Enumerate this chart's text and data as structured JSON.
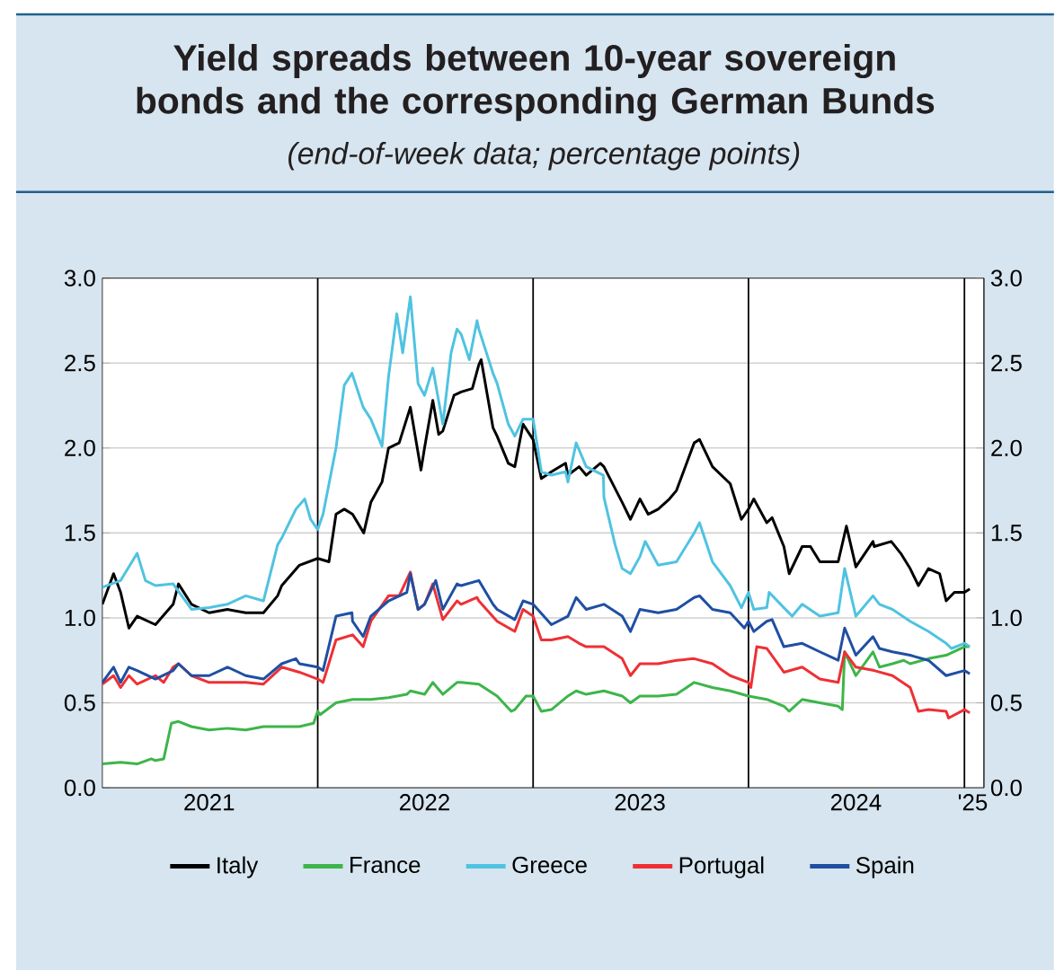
{
  "chart_data": {
    "type": "line",
    "title": "Yield spreads between 10-year sovereign bonds and the corresponding German Bunds",
    "subtitle": "(end-of-week data; percentage points)",
    "xlim": [
      "2021-01-01",
      "2025-02-03"
    ],
    "xticks": [
      {
        "value": "2021-07-01",
        "label": "2021"
      },
      {
        "value": "2022-07-01",
        "label": "2022"
      },
      {
        "value": "2023-07-01",
        "label": "2023"
      },
      {
        "value": "2024-07-01",
        "label": "2024"
      },
      {
        "value": "2025-01-15",
        "label": "'25"
      }
    ],
    "ylim": [
      0,
      3
    ],
    "yticks": [
      {
        "value": 0,
        "label": "0.0"
      },
      0.5,
      {
        "value": 1,
        "label": "1.0"
      },
      1.5,
      {
        "value": 2,
        "label": "2.0"
      },
      2.5,
      {
        "value": 3,
        "label": "3.0"
      }
    ],
    "y2lim": [
      0,
      3
    ],
    "y2ticks": [
      {
        "value": 0,
        "label": "0.0"
      },
      0.5,
      {
        "value": 1,
        "label": "1.0"
      },
      1.5,
      {
        "value": 2,
        "label": "2.0"
      },
      2.5,
      {
        "value": 3,
        "label": "3.0"
      }
    ],
    "grid": "y",
    "legend": "bottom",
    "ref_lines": [
      {
        "axis": "x",
        "value": "2022-01-01",
        "color": "#000000"
      },
      {
        "axis": "x",
        "value": "2023-01-01",
        "color": "#000000"
      },
      {
        "axis": "x",
        "value": "2024-01-01",
        "color": "#000000"
      },
      {
        "axis": "x",
        "value": "2025-01-01",
        "color": "#000000"
      }
    ],
    "series": [
      {
        "name": "Italy",
        "color": "#000000",
        "x": [
          "2021-01-01",
          "2021-01-20",
          "2021-02-01",
          "2021-02-15",
          "2021-03-01",
          "2021-04-01",
          "2021-05-01",
          "2021-05-10",
          "2021-06-01",
          "2021-07-01",
          "2021-08-01",
          "2021-09-01",
          "2021-10-01",
          "2021-10-25",
          "2021-11-01",
          "2021-12-01",
          "2022-01-01",
          "2022-01-20",
          "2022-02-01",
          "2022-02-15",
          "2022-03-01",
          "2022-03-20",
          "2022-04-01",
          "2022-04-20",
          "2022-05-01",
          "2022-05-19",
          "2022-06-07",
          "2022-06-25",
          "2022-07-01",
          "2022-07-15",
          "2022-07-25",
          "2022-08-01",
          "2022-08-20",
          "2022-09-01",
          "2022-09-20",
          "2022-10-01",
          "2022-10-05",
          "2022-10-25",
          "2022-11-01",
          "2022-11-20",
          "2022-12-01",
          "2022-12-15",
          "2023-01-01",
          "2023-01-15",
          "2023-02-01",
          "2023-02-25",
          "2023-03-01",
          "2023-03-20",
          "2023-04-01",
          "2023-04-25",
          "2023-05-01",
          "2023-06-01",
          "2023-06-15",
          "2023-07-01",
          "2023-07-15",
          "2023-08-01",
          "2023-08-20",
          "2023-09-01",
          "2023-10-01",
          "2023-10-10",
          "2023-11-01",
          "2023-12-01",
          "2023-12-20",
          "2024-01-01",
          "2024-01-10",
          "2024-02-01",
          "2024-02-10",
          "2024-03-01",
          "2024-03-10",
          "2024-04-01",
          "2024-04-15",
          "2024-05-01",
          "2024-06-01",
          "2024-06-15",
          "2024-07-01",
          "2024-07-30",
          "2024-08-01",
          "2024-08-30",
          "2024-09-15",
          "2024-10-01",
          "2024-10-15",
          "2024-11-01",
          "2024-11-20",
          "2024-12-01",
          "2024-12-15",
          "2025-01-01",
          "2025-01-10"
        ],
        "values": [
          1.08,
          1.26,
          1.15,
          0.94,
          1.01,
          0.96,
          1.08,
          1.2,
          1.08,
          1.03,
          1.05,
          1.03,
          1.03,
          1.13,
          1.19,
          1.31,
          1.35,
          1.33,
          1.61,
          1.64,
          1.61,
          1.5,
          1.68,
          1.8,
          2.0,
          2.03,
          2.24,
          1.87,
          2.0,
          2.28,
          2.08,
          2.1,
          2.31,
          2.33,
          2.35,
          2.49,
          2.52,
          2.12,
          2.07,
          1.91,
          1.89,
          2.14,
          2.05,
          1.82,
          1.86,
          1.91,
          1.84,
          1.89,
          1.84,
          1.91,
          1.89,
          1.68,
          1.58,
          1.7,
          1.61,
          1.64,
          1.7,
          1.75,
          2.03,
          2.05,
          1.89,
          1.79,
          1.58,
          1.64,
          1.7,
          1.56,
          1.59,
          1.42,
          1.26,
          1.42,
          1.42,
          1.33,
          1.33,
          1.54,
          1.3,
          1.45,
          1.42,
          1.45,
          1.38,
          1.29,
          1.19,
          1.29,
          1.26,
          1.1,
          1.15,
          1.15,
          1.17
        ]
      },
      {
        "name": "France",
        "color": "#3db54a",
        "x": [
          "2021-01-01",
          "2021-02-01",
          "2021-03-01",
          "2021-03-25",
          "2021-04-01",
          "2021-04-15",
          "2021-04-28",
          "2021-05-10",
          "2021-06-01",
          "2021-07-01",
          "2021-08-01",
          "2021-09-01",
          "2021-10-01",
          "2021-11-01",
          "2021-12-01",
          "2021-12-25",
          "2022-01-01",
          "2022-01-05",
          "2022-02-01",
          "2022-03-01",
          "2022-04-01",
          "2022-05-01",
          "2022-06-01",
          "2022-06-07",
          "2022-07-01",
          "2022-07-15",
          "2022-08-01",
          "2022-08-25",
          "2022-09-01",
          "2022-10-01",
          "2022-11-01",
          "2022-11-25",
          "2022-12-01",
          "2022-12-20",
          "2023-01-01",
          "2023-01-15",
          "2023-02-01",
          "2023-03-01",
          "2023-03-15",
          "2023-04-01",
          "2023-05-01",
          "2023-06-01",
          "2023-06-15",
          "2023-07-01",
          "2023-08-01",
          "2023-09-01",
          "2023-10-01",
          "2023-11-01",
          "2023-12-01",
          "2024-01-01",
          "2024-02-01",
          "2024-03-01",
          "2024-03-10",
          "2024-04-01",
          "2024-05-01",
          "2024-06-01",
          "2024-06-08",
          "2024-06-12",
          "2024-07-01",
          "2024-07-30",
          "2024-08-10",
          "2024-09-01",
          "2024-09-20",
          "2024-10-01",
          "2024-11-01",
          "2024-12-01",
          "2025-01-01",
          "2025-01-10"
        ],
        "values": [
          0.14,
          0.15,
          0.14,
          0.17,
          0.16,
          0.17,
          0.38,
          0.39,
          0.36,
          0.34,
          0.35,
          0.34,
          0.36,
          0.36,
          0.36,
          0.38,
          0.45,
          0.43,
          0.5,
          0.52,
          0.52,
          0.53,
          0.55,
          0.57,
          0.55,
          0.62,
          0.55,
          0.62,
          0.62,
          0.61,
          0.54,
          0.45,
          0.46,
          0.54,
          0.54,
          0.45,
          0.46,
          0.54,
          0.57,
          0.55,
          0.57,
          0.54,
          0.5,
          0.54,
          0.54,
          0.55,
          0.62,
          0.59,
          0.57,
          0.54,
          0.52,
          0.48,
          0.45,
          0.52,
          0.5,
          0.48,
          0.46,
          0.8,
          0.66,
          0.8,
          0.71,
          0.73,
          0.75,
          0.73,
          0.76,
          0.78,
          0.83,
          0.83
        ]
      },
      {
        "name": "Greece",
        "color": "#4fc3e1",
        "x": [
          "2021-01-01",
          "2021-02-01",
          "2021-03-01",
          "2021-03-15",
          "2021-04-01",
          "2021-05-01",
          "2021-06-01",
          "2021-07-01",
          "2021-08-01",
          "2021-09-01",
          "2021-10-01",
          "2021-10-25",
          "2021-11-01",
          "2021-11-25",
          "2021-12-10",
          "2021-12-20",
          "2022-01-01",
          "2022-01-10",
          "2022-02-01",
          "2022-02-15",
          "2022-02-28",
          "2022-03-19",
          "2022-04-01",
          "2022-04-20",
          "2022-05-01",
          "2022-05-15",
          "2022-05-25",
          "2022-06-07",
          "2022-06-20",
          "2022-07-01",
          "2022-07-15",
          "2022-08-01",
          "2022-08-15",
          "2022-08-25",
          "2022-09-01",
          "2022-09-15",
          "2022-09-28",
          "2022-10-01",
          "2022-10-25",
          "2022-11-01",
          "2022-11-20",
          "2022-12-01",
          "2022-12-15",
          "2023-01-01",
          "2023-01-15",
          "2023-02-01",
          "2023-02-25",
          "2023-03-01",
          "2023-03-15",
          "2023-04-01",
          "2023-04-30",
          "2023-05-01",
          "2023-05-20",
          "2023-06-01",
          "2023-06-15",
          "2023-07-01",
          "2023-07-10",
          "2023-08-01",
          "2023-09-01",
          "2023-10-01",
          "2023-10-10",
          "2023-11-01",
          "2023-12-01",
          "2023-12-20",
          "2024-01-01",
          "2024-01-10",
          "2024-02-01",
          "2024-02-05",
          "2024-03-01",
          "2024-03-15",
          "2024-04-01",
          "2024-05-01",
          "2024-06-01",
          "2024-06-12",
          "2024-07-01",
          "2024-07-30",
          "2024-08-10",
          "2024-09-01",
          "2024-10-01",
          "2024-11-01",
          "2024-12-01",
          "2024-12-10",
          "2025-01-01",
          "2025-01-10"
        ],
        "values": [
          1.18,
          1.22,
          1.38,
          1.22,
          1.19,
          1.2,
          1.05,
          1.06,
          1.08,
          1.13,
          1.1,
          1.43,
          1.47,
          1.64,
          1.7,
          1.58,
          1.52,
          1.61,
          2.0,
          2.37,
          2.44,
          2.24,
          2.17,
          2.01,
          2.42,
          2.79,
          2.56,
          2.89,
          2.38,
          2.31,
          2.47,
          2.14,
          2.56,
          2.7,
          2.67,
          2.52,
          2.75,
          2.7,
          2.44,
          2.38,
          2.14,
          2.07,
          2.17,
          2.17,
          1.86,
          1.84,
          1.86,
          1.8,
          2.03,
          1.89,
          1.84,
          1.71,
          1.43,
          1.29,
          1.26,
          1.36,
          1.45,
          1.31,
          1.33,
          1.5,
          1.56,
          1.33,
          1.19,
          1.06,
          1.15,
          1.05,
          1.06,
          1.15,
          1.06,
          1.01,
          1.08,
          1.01,
          1.03,
          1.29,
          1.01,
          1.13,
          1.08,
          1.05,
          0.98,
          0.92,
          0.85,
          0.82,
          0.85,
          0.83
        ]
      },
      {
        "name": "Portugal",
        "color": "#ee3035",
        "x": [
          "2021-01-01",
          "2021-01-20",
          "2021-02-01",
          "2021-02-15",
          "2021-03-01",
          "2021-04-01",
          "2021-04-15",
          "2021-05-01",
          "2021-05-10",
          "2021-06-01",
          "2021-07-01",
          "2021-08-01",
          "2021-09-01",
          "2021-10-01",
          "2021-11-01",
          "2021-12-01",
          "2022-01-01",
          "2022-01-10",
          "2022-02-01",
          "2022-03-01",
          "2022-03-19",
          "2022-04-01",
          "2022-05-01",
          "2022-05-19",
          "2022-06-07",
          "2022-06-20",
          "2022-07-01",
          "2022-07-15",
          "2022-08-01",
          "2022-08-25",
          "2022-09-01",
          "2022-09-28",
          "2022-10-01",
          "2022-11-01",
          "2022-12-01",
          "2022-12-15",
          "2023-01-01",
          "2023-01-15",
          "2023-02-01",
          "2023-03-01",
          "2023-03-20",
          "2023-04-01",
          "2023-05-01",
          "2023-06-01",
          "2023-06-15",
          "2023-07-01",
          "2023-08-01",
          "2023-09-01",
          "2023-10-01",
          "2023-11-01",
          "2023-12-01",
          "2024-01-01",
          "2024-01-05",
          "2024-01-15",
          "2024-02-01",
          "2024-03-01",
          "2024-04-01",
          "2024-05-01",
          "2024-06-01",
          "2024-06-12",
          "2024-07-01",
          "2024-08-01",
          "2024-09-01",
          "2024-10-01",
          "2024-10-15",
          "2024-11-01",
          "2024-12-01",
          "2024-12-05",
          "2025-01-01",
          "2025-01-10"
        ],
        "values": [
          0.61,
          0.66,
          0.59,
          0.66,
          0.61,
          0.66,
          0.62,
          0.71,
          0.73,
          0.66,
          0.62,
          0.62,
          0.62,
          0.61,
          0.71,
          0.68,
          0.64,
          0.62,
          0.87,
          0.9,
          0.83,
          0.98,
          1.13,
          1.13,
          1.27,
          1.05,
          1.08,
          1.2,
          0.99,
          1.1,
          1.08,
          1.12,
          1.1,
          0.98,
          0.92,
          1.05,
          1.01,
          0.87,
          0.87,
          0.89,
          0.85,
          0.83,
          0.83,
          0.76,
          0.66,
          0.73,
          0.73,
          0.75,
          0.76,
          0.73,
          0.66,
          0.62,
          0.59,
          0.83,
          0.82,
          0.68,
          0.71,
          0.64,
          0.62,
          0.8,
          0.71,
          0.69,
          0.66,
          0.59,
          0.45,
          0.46,
          0.45,
          0.41,
          0.46,
          0.44
        ]
      },
      {
        "name": "Spain",
        "color": "#1f4fa3",
        "x": [
          "2021-01-01",
          "2021-01-20",
          "2021-02-01",
          "2021-02-15",
          "2021-03-01",
          "2021-04-01",
          "2021-05-01",
          "2021-05-10",
          "2021-06-01",
          "2021-07-01",
          "2021-08-01",
          "2021-09-01",
          "2021-10-01",
          "2021-11-01",
          "2021-11-25",
          "2021-12-01",
          "2022-01-01",
          "2022-01-10",
          "2022-02-01",
          "2022-02-28",
          "2022-03-01",
          "2022-03-19",
          "2022-04-01",
          "2022-05-01",
          "2022-06-01",
          "2022-06-07",
          "2022-06-20",
          "2022-07-01",
          "2022-07-20",
          "2022-08-01",
          "2022-08-25",
          "2022-09-01",
          "2022-10-01",
          "2022-10-25",
          "2022-11-01",
          "2022-12-01",
          "2022-12-15",
          "2023-01-01",
          "2023-02-01",
          "2023-03-01",
          "2023-03-15",
          "2023-04-01",
          "2023-05-01",
          "2023-06-01",
          "2023-06-15",
          "2023-07-01",
          "2023-08-01",
          "2023-09-01",
          "2023-10-01",
          "2023-10-10",
          "2023-11-01",
          "2023-12-01",
          "2023-12-25",
          "2024-01-01",
          "2024-01-10",
          "2024-02-01",
          "2024-02-10",
          "2024-03-01",
          "2024-04-01",
          "2024-05-01",
          "2024-06-01",
          "2024-06-12",
          "2024-07-01",
          "2024-07-30",
          "2024-08-10",
          "2024-09-01",
          "2024-10-01",
          "2024-11-01",
          "2024-12-01",
          "2025-01-01",
          "2025-01-10"
        ],
        "values": [
          0.62,
          0.71,
          0.62,
          0.71,
          0.69,
          0.64,
          0.69,
          0.73,
          0.66,
          0.66,
          0.71,
          0.66,
          0.64,
          0.73,
          0.76,
          0.73,
          0.71,
          0.69,
          1.01,
          1.03,
          0.98,
          0.89,
          1.01,
          1.1,
          1.15,
          1.26,
          1.05,
          1.08,
          1.22,
          1.05,
          1.2,
          1.19,
          1.22,
          1.08,
          1.05,
          0.99,
          1.1,
          1.08,
          0.96,
          1.01,
          1.12,
          1.05,
          1.08,
          1.01,
          0.92,
          1.05,
          1.03,
          1.05,
          1.12,
          1.13,
          1.05,
          1.03,
          0.94,
          0.98,
          0.92,
          0.98,
          0.99,
          0.83,
          0.85,
          0.8,
          0.75,
          0.94,
          0.78,
          0.89,
          0.82,
          0.8,
          0.78,
          0.75,
          0.66,
          0.69,
          0.67
        ]
      }
    ]
  }
}
